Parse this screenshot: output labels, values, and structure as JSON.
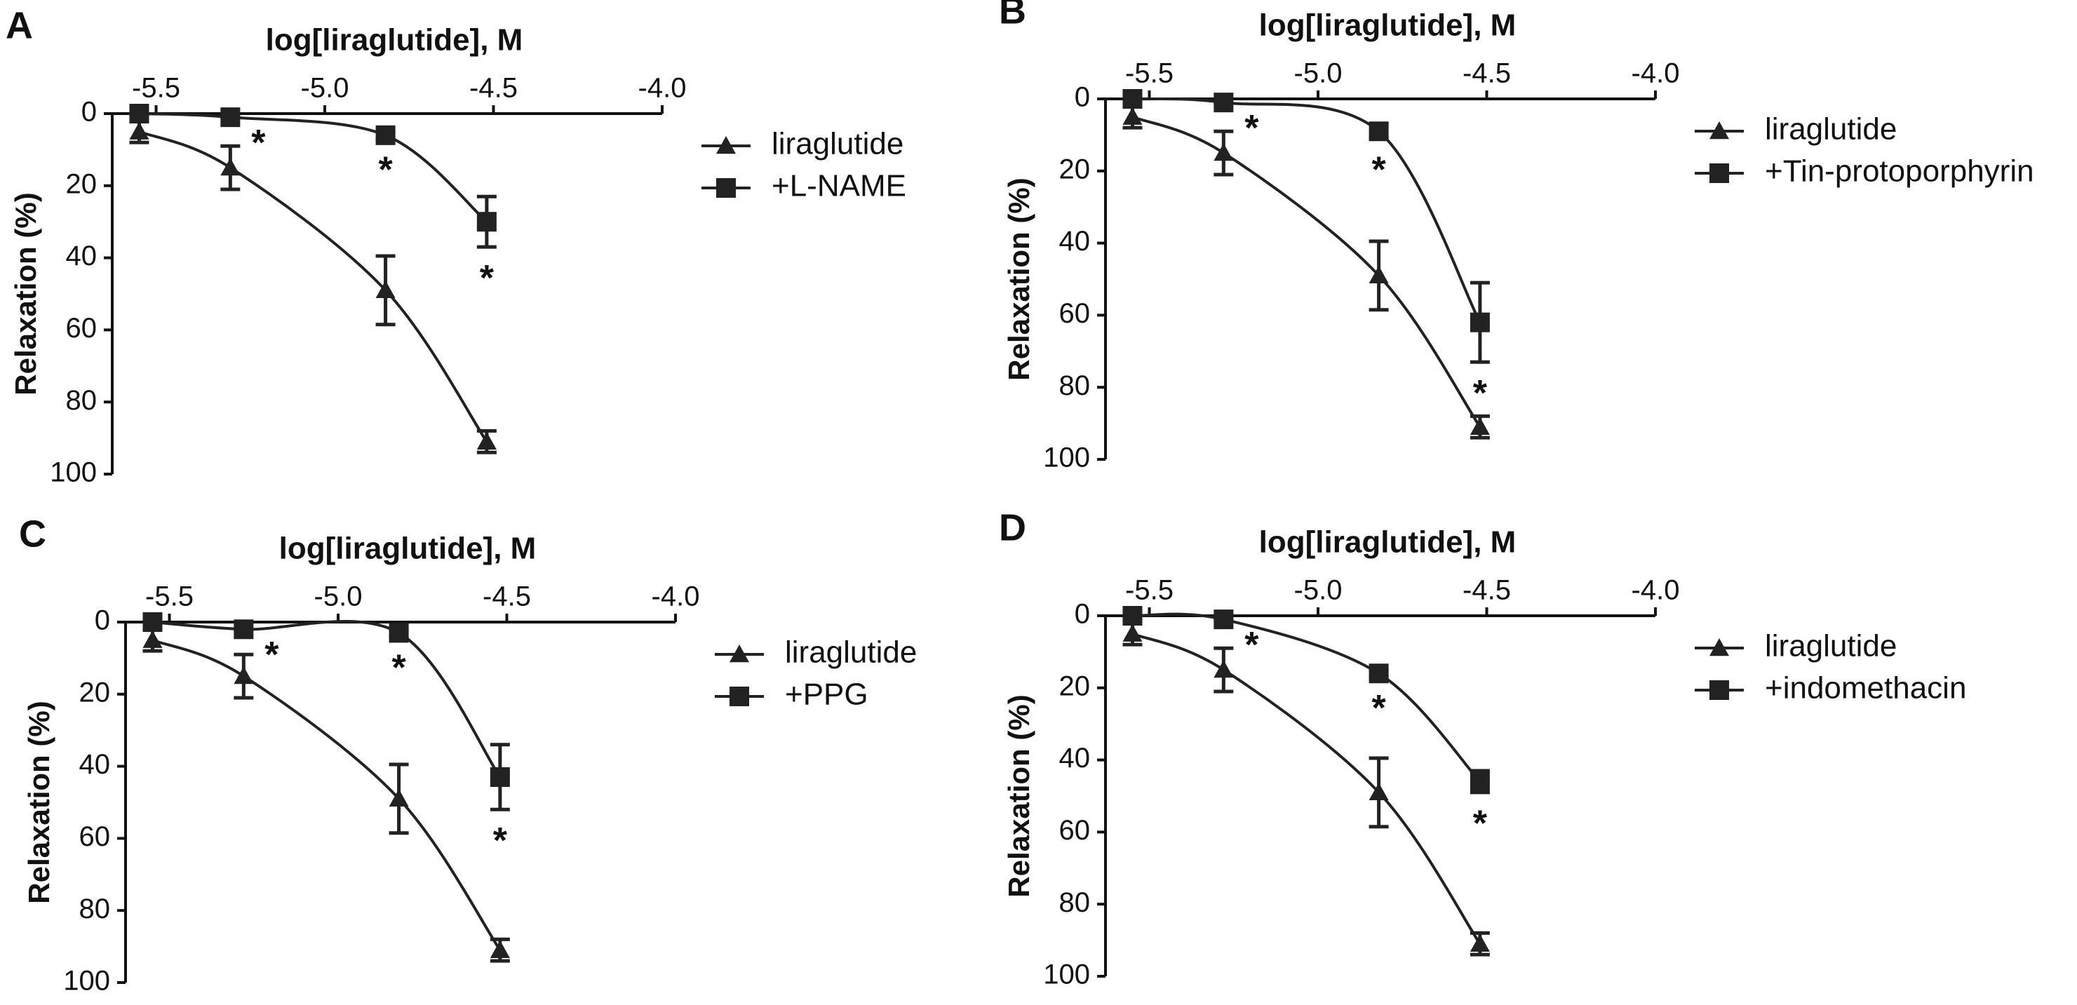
{
  "chart_data": [
    {
      "type": "line",
      "panel_label": "A",
      "title": "log[liraglutide], M",
      "y_label": "Relaxation (%)",
      "x": [
        -5.55,
        -5.28,
        -4.82,
        -4.52
      ],
      "series": [
        {
          "name": "liraglutide",
          "color": "#222222",
          "marker": "triangle",
          "values": [
            5,
            15,
            49,
            91
          ],
          "errors": [
            3,
            6,
            9.5,
            3
          ]
        },
        {
          "name": "+L-NAME",
          "color": "#222222",
          "marker": "square",
          "values": [
            0,
            1,
            6,
            30
          ],
          "errors": [
            0,
            0,
            1,
            7
          ],
          "significance": [
            null,
            "*",
            "*",
            "*"
          ]
        }
      ],
      "xlim": [
        -5.63,
        -4.0
      ],
      "xticks": [
        -5.5,
        {
          "value": -5,
          "label": "-5.0"
        },
        -4.5,
        {
          "value": -4,
          "label": "-4.0"
        }
      ],
      "ylim": [
        0,
        100
      ],
      "yticks": [
        0,
        20,
        40,
        60,
        80,
        100
      ],
      "y_reversed": true,
      "x_axis_position": "top",
      "legend": "right"
    },
    {
      "type": "line",
      "panel_label": "B",
      "title": "log[liraglutide], M",
      "y_label": "Relaxation (%)",
      "x": [
        -5.55,
        -5.28,
        -4.82,
        -4.52
      ],
      "series": [
        {
          "name": "liraglutide",
          "color": "#222222",
          "marker": "triangle",
          "values": [
            5,
            15,
            49,
            91
          ],
          "errors": [
            3,
            6,
            9.5,
            3
          ]
        },
        {
          "name": "+Tin-protoporphyrin",
          "color": "#222222",
          "marker": "square",
          "values": [
            0,
            1,
            9,
            62
          ],
          "errors": [
            0,
            0,
            2,
            11
          ],
          "significance": [
            null,
            "*",
            "*",
            "*"
          ]
        }
      ],
      "xlim": [
        -5.63,
        -4.0
      ],
      "xticks": [
        -5.5,
        {
          "value": -5,
          "label": "-5.0"
        },
        -4.5,
        {
          "value": -4,
          "label": "-4.0"
        }
      ],
      "ylim": [
        0,
        100
      ],
      "yticks": [
        0,
        20,
        40,
        60,
        80,
        100
      ],
      "y_reversed": true,
      "x_axis_position": "top",
      "legend": "right"
    },
    {
      "type": "line",
      "panel_label": "C",
      "title": "log[liraglutide], M",
      "y_label": "Relaxation (%)",
      "x": [
        -5.55,
        -5.28,
        -4.82,
        -4.52
      ],
      "series": [
        {
          "name": "liraglutide",
          "color": "#222222",
          "marker": "triangle",
          "values": [
            5,
            15,
            49,
            91
          ],
          "errors": [
            3,
            6,
            9.5,
            3
          ]
        },
        {
          "name": "+PPG",
          "color": "#222222",
          "marker": "square",
          "values": [
            0,
            2,
            3,
            43
          ],
          "errors": [
            0,
            0,
            1,
            9
          ],
          "significance": [
            null,
            "*",
            "*",
            "*"
          ]
        }
      ],
      "xlim": [
        -5.63,
        -4.0
      ],
      "xticks": [
        -5.5,
        {
          "value": -5,
          "label": "-5.0"
        },
        -4.5,
        {
          "value": -4,
          "label": "-4.0"
        }
      ],
      "ylim": [
        0,
        100
      ],
      "yticks": [
        0,
        20,
        40,
        60,
        80,
        100
      ],
      "y_reversed": true,
      "x_axis_position": "top",
      "legend": "right"
    },
    {
      "type": "line",
      "panel_label": "D",
      "title": "log[liraglutide], M",
      "y_label": "Relaxation (%)",
      "x": [
        -5.55,
        -5.28,
        -4.82,
        -4.52
      ],
      "series": [
        {
          "name": "liraglutide",
          "color": "#222222",
          "marker": "triangle",
          "values": [
            5,
            15,
            49,
            91
          ],
          "errors": [
            3,
            6,
            9.5,
            3
          ]
        },
        {
          "name": "+indomethacin",
          "color": "#222222",
          "marker": "square",
          "values": [
            0,
            1,
            16,
            46
          ],
          "errors": [
            0,
            0,
            1,
            3
          ],
          "significance": [
            null,
            "*",
            "*",
            "*"
          ]
        }
      ],
      "xlim": [
        -5.63,
        -4.0
      ],
      "xticks": [
        -5.5,
        {
          "value": -5,
          "label": "-5.0"
        },
        -4.5,
        {
          "value": -4,
          "label": "-4.0"
        }
      ],
      "ylim": [
        0,
        100
      ],
      "yticks": [
        0,
        20,
        40,
        60,
        80,
        100
      ],
      "y_reversed": true,
      "x_axis_position": "top",
      "legend": "right"
    }
  ]
}
